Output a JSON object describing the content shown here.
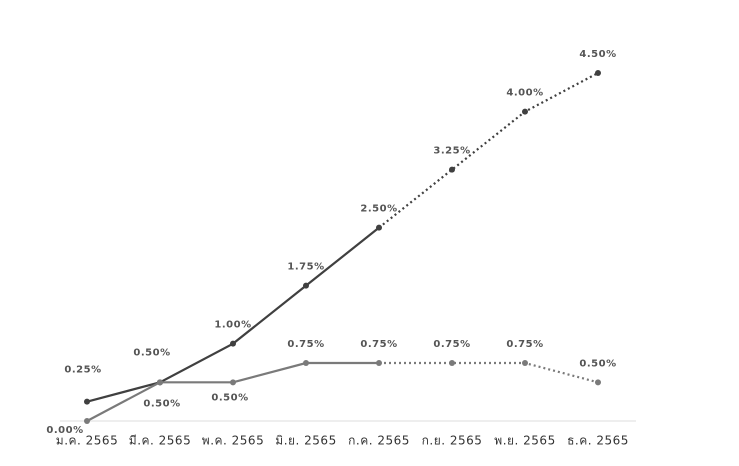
{
  "chart_data": {
    "type": "line",
    "categories": [
      "ม.ค. 2565",
      "มี.ค. 2565",
      "พ.ค. 2565",
      "มิ.ย. 2565",
      "ก.ค. 2565",
      "ก.ย. 2565",
      "พ.ย. 2565",
      "ธ.ค. 2565"
    ],
    "series": [
      {
        "color": "#404040",
        "dotted_after": 4,
        "values": [
          0.25,
          0.5,
          1.0,
          1.75,
          2.5,
          3.25,
          4.0,
          4.5
        ],
        "value_labels": [
          "0.25%",
          "0.50%",
          "1.00%",
          "1.75%",
          "2.50%",
          "3.25%",
          "4.00%",
          "4.50%"
        ]
      },
      {
        "color": "#7a7a7a",
        "dotted_after": 4,
        "values": [
          0.0,
          0.5,
          0.5,
          0.75,
          0.75,
          0.75,
          0.75,
          0.5
        ],
        "value_labels": [
          "0.00%",
          "0.50%",
          "0.50%",
          "0.75%",
          "0.75%",
          "0.75%",
          "0.75%",
          "0.50%"
        ]
      }
    ]
  }
}
